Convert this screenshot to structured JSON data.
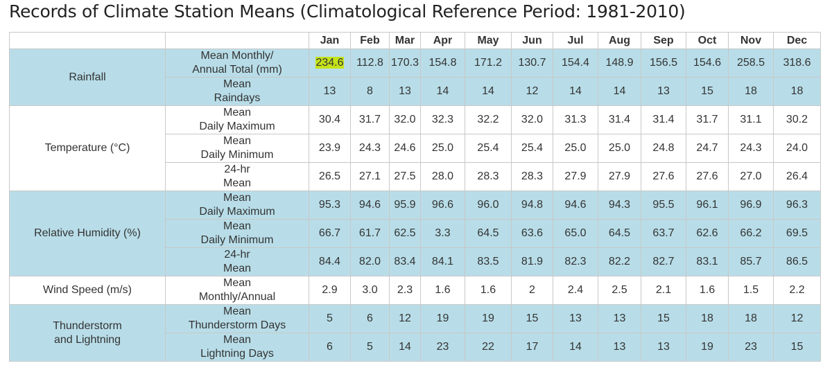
{
  "title": "Records of Climate Station Means (Climatological Reference Period: 1981-2010)",
  "table": {
    "columns": [
      "Jan",
      "Feb",
      "Mar",
      "Apr",
      "May",
      "Jun",
      "Jul",
      "Aug",
      "Sep",
      "Oct",
      "Nov",
      "Dec"
    ],
    "groups": [
      {
        "label": "Rainfall",
        "rows": [
          {
            "label": "Mean Monthly/\nAnnual Total (mm)",
            "values": [
              "234.6",
              "112.8",
              "170.3",
              "154.8",
              "171.2",
              "130.7",
              "154.4",
              "148.9",
              "156.5",
              "154.6",
              "258.5",
              "318.6"
            ]
          },
          {
            "label": "Mean\nRaindays",
            "values": [
              "13",
              "8",
              "13",
              "14",
              "14",
              "12",
              "14",
              "14",
              "13",
              "15",
              "18",
              "18"
            ]
          }
        ]
      },
      {
        "label": "Temperature (°C)",
        "rows": [
          {
            "label": "Mean\nDaily Maximum",
            "values": [
              "30.4",
              "31.7",
              "32.0",
              "32.3",
              "32.2",
              "32.0",
              "31.3",
              "31.4",
              "31.4",
              "31.7",
              "31.1",
              "30.2"
            ]
          },
          {
            "label": "Mean\nDaily Minimum",
            "values": [
              "23.9",
              "24.3",
              "24.6",
              "25.0",
              "25.4",
              "25.4",
              "25.0",
              "25.0",
              "24.8",
              "24.7",
              "24.3",
              "24.0"
            ]
          },
          {
            "label": "24-hr\nMean",
            "values": [
              "26.5",
              "27.1",
              "27.5",
              "28.0",
              "28.3",
              "28.3",
              "27.9",
              "27.9",
              "27.6",
              "27.6",
              "27.0",
              "26.4"
            ]
          }
        ]
      },
      {
        "label": "Relative Humidity (%)",
        "rows": [
          {
            "label": "Mean\nDaily Maximum",
            "values": [
              "95.3",
              "94.6",
              "95.9",
              "96.6",
              "96.0",
              "94.8",
              "94.6",
              "94.3",
              "95.5",
              "96.1",
              "96.9",
              "96.3"
            ]
          },
          {
            "label": "Mean\nDaily Minimum",
            "values": [
              "66.7",
              "61.7",
              "62.5",
              "3.3",
              "64.5",
              "63.6",
              "65.0",
              "64.5",
              "63.7",
              "62.6",
              "66.2",
              "69.5"
            ]
          },
          {
            "label": "24-hr\nMean",
            "values": [
              "84.4",
              "82.0",
              "83.4",
              "84.1",
              "83.5",
              "81.9",
              "82.3",
              "82.2",
              "82.7",
              "83.1",
              "85.7",
              "86.5"
            ]
          }
        ]
      },
      {
        "label": "Wind Speed (m/s)",
        "rows": [
          {
            "label": "Mean\nMonthly/Annual",
            "values": [
              "2.9",
              "3.0",
              "2.3",
              "1.6",
              "1.6",
              "2",
              "2.4",
              "2.5",
              "2.1",
              "1.6",
              "1.5",
              "2.2"
            ]
          }
        ]
      },
      {
        "label": "Thunderstorm\nand Lightning",
        "rows": [
          {
            "label": "Mean\nThunderstorm Days",
            "values": [
              "5",
              "6",
              "12",
              "19",
              "19",
              "15",
              "13",
              "13",
              "15",
              "18",
              "18",
              "12"
            ]
          },
          {
            "label": "Mean\nLightning Days",
            "values": [
              "6",
              "5",
              "14",
              "23",
              "22",
              "17",
              "14",
              "13",
              "13",
              "19",
              "23",
              "15"
            ]
          }
        ]
      }
    ]
  }
}
